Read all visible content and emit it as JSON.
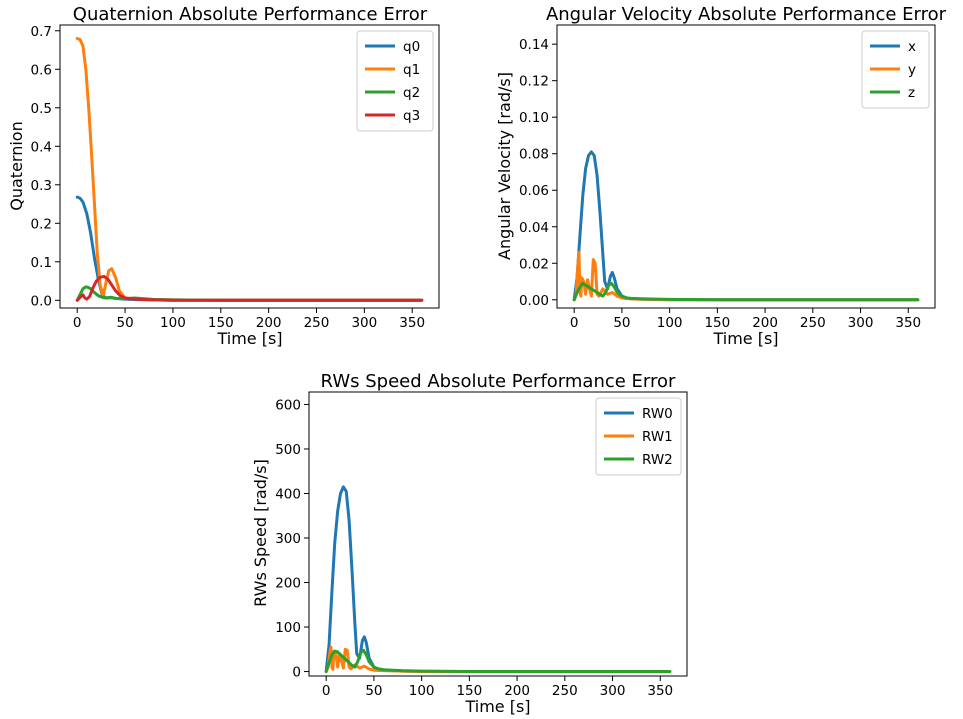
{
  "colors": {
    "blue": "#1f77b4",
    "orange": "#ff7f0e",
    "green": "#2ca02c",
    "red": "#d62728"
  },
  "chart_data": [
    {
      "type": "line",
      "title": "Quaternion Absolute Performance Error",
      "xlabel": "Time [s]",
      "ylabel": "Quaternion",
      "xlim": [
        -18,
        378
      ],
      "ylim": [
        -0.02,
        0.715
      ],
      "xticks": [
        0,
        50,
        100,
        150,
        200,
        250,
        300,
        350
      ],
      "yticks": [
        0.0,
        0.1,
        0.2,
        0.3,
        0.4,
        0.5,
        0.6,
        0.7
      ],
      "ytick_labels": [
        "0.0",
        "0.1",
        "0.2",
        "0.3",
        "0.4",
        "0.5",
        "0.6",
        "0.7"
      ],
      "legend": "top-right",
      "grid": false,
      "series": [
        {
          "name": "q0",
          "color": "#1f77b4",
          "x": [
            0,
            3,
            6,
            10,
            14,
            18,
            22,
            26,
            30,
            35,
            40,
            50,
            60,
            80,
            100,
            150,
            200,
            250,
            300,
            360
          ],
          "y": [
            0.268,
            0.265,
            0.255,
            0.225,
            0.175,
            0.11,
            0.055,
            0.015,
            0.006,
            0.007,
            0.005,
            0.003,
            0.002,
            0.001,
            0.0,
            0.0,
            0.0,
            0.0,
            0.0,
            0.0
          ]
        },
        {
          "name": "q1",
          "color": "#ff7f0e",
          "x": [
            0,
            3,
            6,
            9,
            12,
            15,
            18,
            21,
            24,
            27,
            30,
            33,
            36,
            40,
            44,
            50,
            60,
            80,
            100,
            150,
            200,
            250,
            300,
            360
          ],
          "y": [
            0.68,
            0.677,
            0.66,
            0.6,
            0.5,
            0.38,
            0.25,
            0.12,
            0.04,
            0.01,
            0.045,
            0.077,
            0.082,
            0.06,
            0.025,
            0.006,
            0.004,
            0.002,
            0.001,
            0.0,
            0.0,
            0.0,
            0.0,
            0.0
          ]
        },
        {
          "name": "q2",
          "color": "#2ca02c",
          "x": [
            0,
            3,
            6,
            9,
            12,
            15,
            18,
            22,
            26,
            30,
            35,
            40,
            50,
            60,
            70,
            80,
            100,
            150,
            200,
            250,
            300,
            360
          ],
          "y": [
            0.0,
            0.015,
            0.03,
            0.035,
            0.033,
            0.028,
            0.02,
            0.012,
            0.008,
            0.006,
            0.008,
            0.005,
            0.004,
            0.006,
            0.004,
            0.002,
            0.001,
            0.0,
            0.0,
            0.0,
            0.0,
            0.0
          ]
        },
        {
          "name": "q3",
          "color": "#d62728",
          "x": [
            0,
            3,
            6,
            8,
            10,
            13,
            16,
            20,
            24,
            28,
            32,
            36,
            40,
            45,
            50,
            60,
            80,
            100,
            150,
            200,
            250,
            300,
            360
          ],
          "y": [
            0.0,
            0.008,
            0.014,
            0.006,
            0.003,
            0.01,
            0.03,
            0.05,
            0.06,
            0.062,
            0.055,
            0.04,
            0.025,
            0.012,
            0.006,
            0.003,
            0.001,
            0.0,
            0.0,
            0.0,
            0.0,
            0.0,
            0.0
          ]
        }
      ]
    },
    {
      "type": "line",
      "title": "Angular Velocity Absolute Performance Error",
      "xlabel": "Time [s]",
      "ylabel": "Angular Velocity [rad/s]",
      "xlim": [
        -18,
        378
      ],
      "ylim": [
        -0.0045,
        0.1505
      ],
      "xticks": [
        0,
        50,
        100,
        150,
        200,
        250,
        300,
        350
      ],
      "yticks": [
        0.0,
        0.02,
        0.04,
        0.06,
        0.08,
        0.1,
        0.12,
        0.14
      ],
      "ytick_labels": [
        "0.00",
        "0.02",
        "0.04",
        "0.06",
        "0.08",
        "0.10",
        "0.12",
        "0.14"
      ],
      "legend": "top-right",
      "grid": false,
      "series": [
        {
          "name": "x",
          "color": "#1f77b4",
          "x": [
            0,
            3,
            6,
            9,
            12,
            15,
            18,
            21,
            24,
            27,
            30,
            32,
            35,
            38,
            40,
            42,
            45,
            50,
            55,
            60,
            80,
            100,
            150,
            200,
            250,
            300,
            360
          ],
          "y": [
            0.0,
            0.012,
            0.035,
            0.057,
            0.072,
            0.079,
            0.081,
            0.079,
            0.068,
            0.048,
            0.025,
            0.01,
            0.006,
            0.013,
            0.015,
            0.012,
            0.006,
            0.002,
            0.001,
            0.0005,
            0.0002,
            0.0001,
            0.0,
            0.0,
            0.0,
            0.0,
            0.0
          ]
        },
        {
          "name": "y",
          "color": "#ff7f0e",
          "x": [
            0,
            2,
            4,
            5,
            6,
            7,
            8,
            10,
            12,
            14,
            16,
            18,
            20,
            22,
            24,
            26,
            30,
            35,
            40,
            45,
            50,
            60,
            80,
            100,
            150,
            200,
            250,
            300,
            360
          ],
          "y": [
            0.0,
            0.003,
            0.02,
            0.026,
            0.004,
            0.002,
            0.012,
            0.01,
            0.003,
            0.011,
            0.006,
            0.002,
            0.022,
            0.02,
            0.003,
            0.002,
            0.006,
            0.003,
            0.004,
            0.002,
            0.001,
            0.0005,
            0.0002,
            0.0,
            0.0,
            0.0,
            0.0,
            0.0,
            0.0
          ]
        },
        {
          "name": "z",
          "color": "#2ca02c",
          "x": [
            0,
            3,
            6,
            9,
            12,
            15,
            18,
            21,
            24,
            27,
            30,
            33,
            36,
            39,
            42,
            45,
            50,
            55,
            60,
            70,
            80,
            100,
            150,
            200,
            250,
            300,
            360
          ],
          "y": [
            0.0,
            0.004,
            0.007,
            0.009,
            0.008,
            0.007,
            0.006,
            0.005,
            0.004,
            0.003,
            0.002,
            0.004,
            0.008,
            0.009,
            0.007,
            0.004,
            0.002,
            0.001,
            0.0008,
            0.0006,
            0.0004,
            0.0002,
            0.0,
            0.0,
            0.0,
            0.0,
            0.0
          ]
        }
      ]
    },
    {
      "type": "line",
      "title": "RWs Speed Absolute Performance Error",
      "xlabel": "Time [s]",
      "ylabel": "RWs Speed [rad/s]",
      "xlim": [
        -18,
        378
      ],
      "ylim": [
        -10,
        628
      ],
      "xticks": [
        0,
        50,
        100,
        150,
        200,
        250,
        300,
        350
      ],
      "yticks": [
        0,
        100,
        200,
        300,
        400,
        500,
        600
      ],
      "ytick_labels": [
        "0",
        "100",
        "200",
        "300",
        "400",
        "500",
        "600"
      ],
      "legend": "top-right",
      "grid": false,
      "series": [
        {
          "name": "RW0",
          "color": "#1f77b4",
          "x": [
            0,
            3,
            6,
            9,
            12,
            15,
            18,
            21,
            24,
            27,
            30,
            32,
            35,
            38,
            40,
            42,
            45,
            50,
            55,
            60,
            80,
            100,
            150,
            200,
            250,
            300,
            360
          ],
          "y": [
            0,
            60,
            180,
            290,
            360,
            400,
            415,
            405,
            340,
            230,
            110,
            40,
            30,
            70,
            78,
            65,
            30,
            10,
            5,
            3,
            1,
            0.5,
            0,
            0,
            0,
            0,
            0
          ]
        },
        {
          "name": "RW1",
          "color": "#ff7f0e",
          "x": [
            0,
            2,
            4,
            5,
            6,
            7,
            8,
            10,
            12,
            14,
            16,
            18,
            20,
            22,
            24,
            26,
            30,
            35,
            40,
            45,
            50,
            60,
            80,
            100,
            150,
            200,
            250,
            300,
            360
          ],
          "y": [
            0,
            10,
            45,
            55,
            10,
            5,
            45,
            40,
            10,
            40,
            25,
            8,
            50,
            48,
            10,
            6,
            15,
            8,
            12,
            6,
            3,
            2,
            1,
            0,
            0,
            0,
            0,
            0,
            0
          ]
        },
        {
          "name": "RW2",
          "color": "#2ca02c",
          "x": [
            0,
            3,
            6,
            9,
            12,
            15,
            18,
            21,
            24,
            27,
            30,
            33,
            36,
            39,
            42,
            45,
            50,
            55,
            60,
            70,
            80,
            100,
            150,
            200,
            250,
            300,
            360
          ],
          "y": [
            0,
            20,
            38,
            46,
            44,
            38,
            32,
            26,
            20,
            14,
            10,
            22,
            42,
            48,
            38,
            22,
            10,
            6,
            4,
            3,
            2,
            1,
            0,
            0,
            0,
            0,
            0
          ]
        }
      ]
    }
  ]
}
